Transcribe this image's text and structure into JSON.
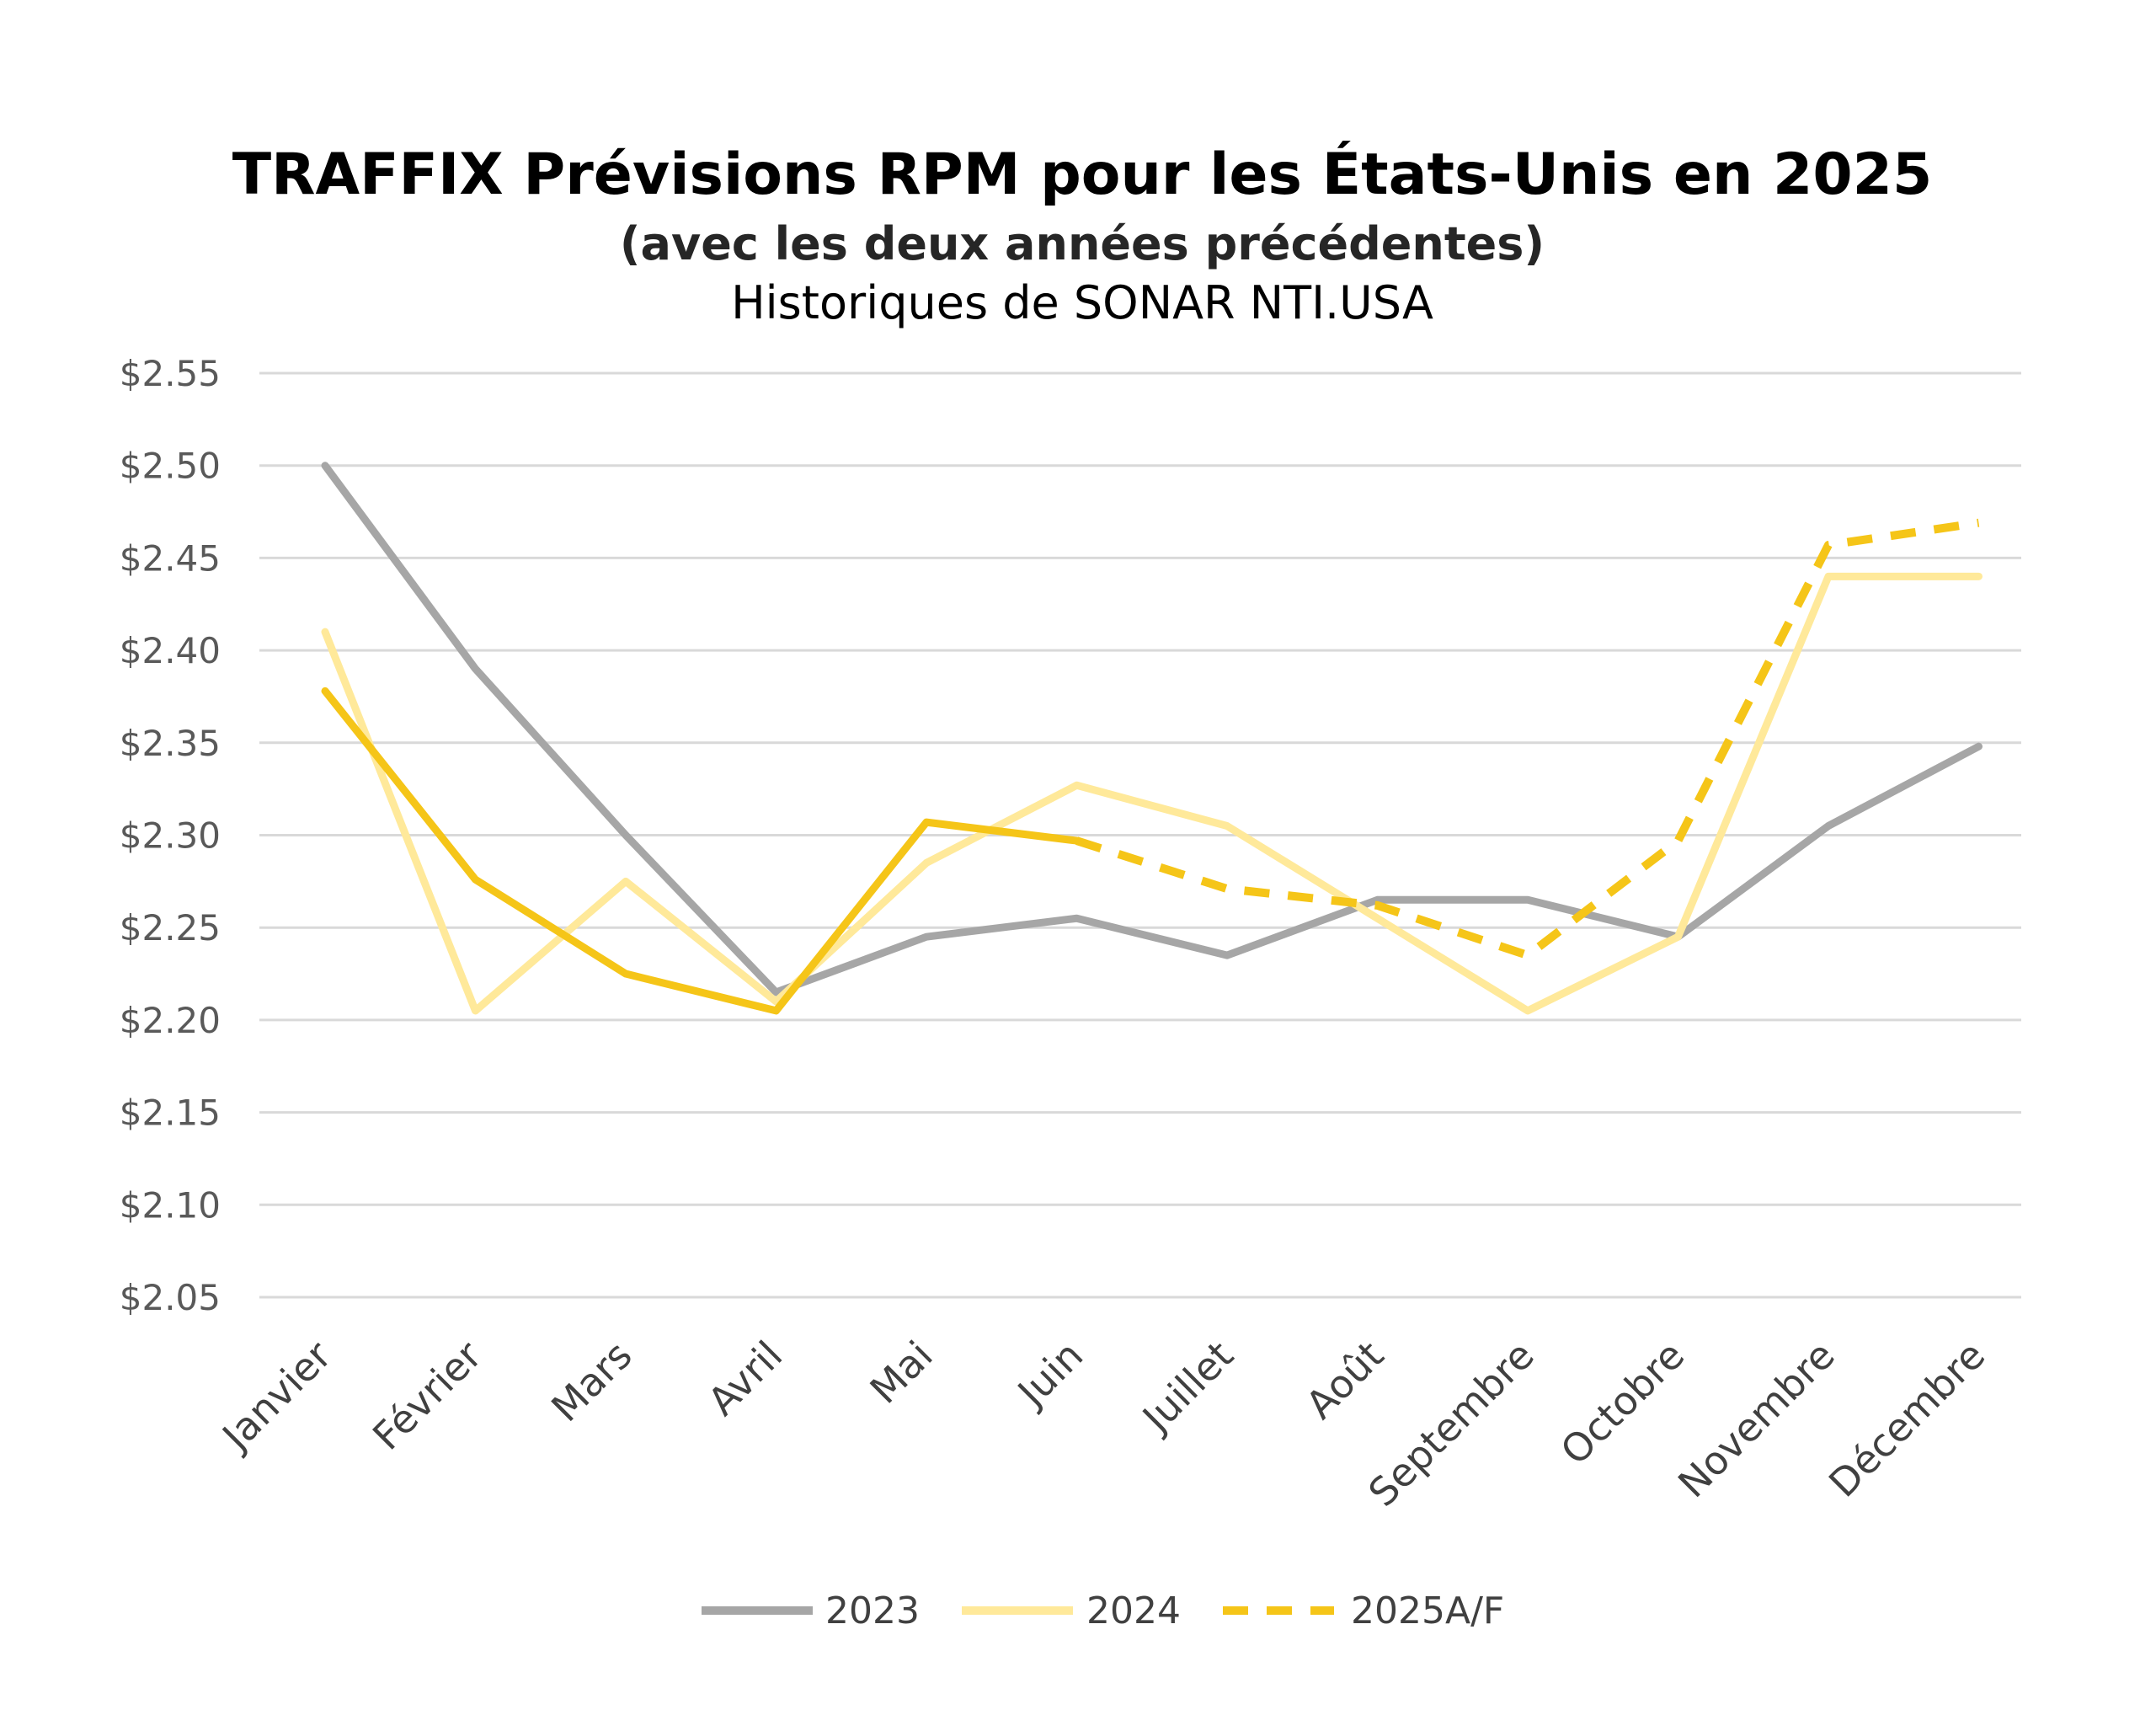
{
  "chart_data": {
    "type": "line",
    "title": "TRAFFIX Prévisions RPM pour les États-Unis en 2025",
    "subtitle": "(avec les deux années précédentes)",
    "source": "Historiques de SONAR NTI.USA",
    "xlabel": "",
    "ylabel": "",
    "ylim": [
      2.05,
      2.55
    ],
    "yticks": [
      "$2.55",
      "$2.50",
      "$2.45",
      "$2.40",
      "$2.35",
      "$2.30",
      "$2.25",
      "$2.20",
      "$2.15",
      "$2.10",
      "$2.05"
    ],
    "ytick_values": [
      2.55,
      2.5,
      2.45,
      2.4,
      2.35,
      2.3,
      2.25,
      2.2,
      2.15,
      2.1,
      2.05
    ],
    "grid": true,
    "legend_position": "bottom",
    "categories": [
      "Janvier",
      "Février",
      "Mars",
      "Avril",
      "Mai",
      "Juin",
      "Juillet",
      "Août",
      "Septembre",
      "Octobre",
      "Novembre",
      "Décembre"
    ],
    "series": [
      {
        "name": "2023",
        "color": "#a6a6a6",
        "style": "solid",
        "values": [
          2.5,
          2.39,
          2.3,
          2.215,
          2.245,
          2.255,
          2.235,
          2.265,
          2.265,
          2.245,
          2.305,
          2.348
        ]
      },
      {
        "name": "2024",
        "color": "#ffe99a",
        "style": "solid",
        "values": [
          2.41,
          2.205,
          2.275,
          2.21,
          2.285,
          2.327,
          2.305,
          2.255,
          2.205,
          2.245,
          2.44,
          2.44
        ]
      },
      {
        "name": "2025A/F",
        "color": "#f5c518",
        "style": "mixed",
        "actual_until_index": 5,
        "values": [
          2.378,
          2.276,
          2.225,
          2.205,
          2.307,
          2.297,
          2.271,
          2.262,
          2.235,
          2.297,
          2.457,
          2.469
        ]
      }
    ]
  }
}
